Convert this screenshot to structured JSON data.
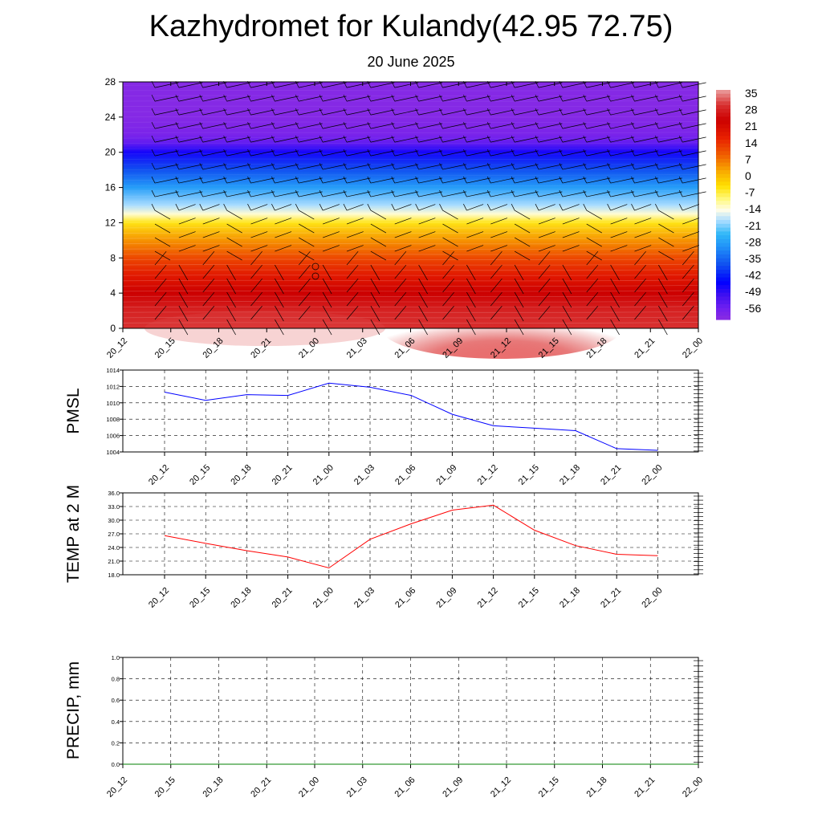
{
  "page": {
    "title": "Kazhydromet for Kulandy(42.95 72.75)",
    "subtitle": "20 June 2025"
  },
  "chart_data": [
    {
      "id": "temperature-profile",
      "type": "heatmap",
      "x_tick_labels": [
        "20_12",
        "20_15",
        "20_18",
        "20_21",
        "21_00",
        "21_03",
        "21_06",
        "21_09",
        "21_12",
        "21_15",
        "21_18",
        "21_21",
        "22_00"
      ],
      "y_ticks": [
        0,
        4,
        8,
        12,
        16,
        20,
        24,
        28
      ],
      "ylim": [
        0,
        28
      ],
      "colorbar_labels": [
        "35",
        "28",
        "21",
        "14",
        "7",
        "0",
        "-7",
        "-14",
        "-21",
        "-28",
        "-35",
        "-42",
        "-49",
        "-56"
      ],
      "colorbar_range": [
        -63,
        42
      ],
      "level_temperatures": [
        {
          "level": 0,
          "t": 35
        },
        {
          "level": 2,
          "t": 33
        },
        {
          "level": 4,
          "t": 28
        },
        {
          "level": 6,
          "t": 22
        },
        {
          "level": 8,
          "t": 15
        },
        {
          "level": 10,
          "t": 7
        },
        {
          "level": 12,
          "t": -3
        },
        {
          "level": 13,
          "t": -12
        },
        {
          "level": 14,
          "t": -18
        },
        {
          "level": 16,
          "t": -28
        },
        {
          "level": 18,
          "t": -38
        },
        {
          "level": 20,
          "t": -48
        },
        {
          "level": 21,
          "t": -56
        },
        {
          "level": 22,
          "t": -60
        },
        {
          "level": 24,
          "t": -62
        },
        {
          "level": 28,
          "t": -62
        }
      ],
      "colors": [
        "#e0e0e0",
        "#e05858",
        "#cc0000",
        "#e83010",
        "#f06000",
        "#f8a000",
        "#fff000",
        "#fffdf0",
        "#a0d8ff",
        "#30b0f8",
        "#1060f0",
        "#0000ff",
        "#5020f0",
        "#8020f0"
      ],
      "wind_barbs": "present"
    },
    {
      "id": "pmsl",
      "type": "line",
      "ylabel": "PMSL",
      "x_tick_labels": [
        "20_12",
        "20_15",
        "20_18",
        "20_21",
        "21_00",
        "21_03",
        "21_06",
        "21_09",
        "21_12",
        "21_15",
        "21_18",
        "21_21",
        "22_00"
      ],
      "y_tick_labels": [
        "1014",
        "1012",
        "1010",
        "1008",
        "1006",
        "1004"
      ],
      "ylim": [
        1004,
        1014
      ],
      "series": [
        {
          "values": [
            1011.3,
            1010.3,
            1011.0,
            1010.9,
            1012.4,
            1011.9,
            1010.9,
            1008.6,
            1007.2,
            1006.9,
            1006.6,
            1004.4,
            1004.2
          ]
        }
      ],
      "color": "#0000ff",
      "grid": true
    },
    {
      "id": "temp2m",
      "type": "line",
      "ylabel": "TEMP at 2 M",
      "x_tick_labels": [
        "20_12",
        "20_15",
        "20_18",
        "20_21",
        "21_00",
        "21_03",
        "21_06",
        "21_09",
        "21_12",
        "21_15",
        "21_18",
        "21_21",
        "22_00"
      ],
      "y_tick_labels": [
        "36.0",
        "33.0",
        "30.0",
        "27.0",
        "24.0",
        "21.0",
        "18.0"
      ],
      "ylim": [
        18,
        36
      ],
      "series": [
        {
          "values": [
            26.6,
            24.9,
            23.3,
            21.9,
            19.5,
            25.8,
            29.2,
            32.2,
            33.3,
            27.8,
            24.4,
            22.5,
            22.2
          ]
        }
      ],
      "color": "#ff0000",
      "grid": true
    },
    {
      "id": "precip",
      "type": "line",
      "ylabel": "PRECIP, mm",
      "x_tick_labels": [
        "20_12",
        "20_15",
        "20_18",
        "20_21",
        "21_00",
        "21_03",
        "21_06",
        "21_09",
        "21_12",
        "21_15",
        "21_18",
        "21_21",
        "22_00"
      ],
      "y_tick_labels": [
        "1.0",
        "0.8",
        "0.6",
        "0.4",
        "0.2",
        "0.0"
      ],
      "ylim": [
        0,
        1
      ],
      "series": [
        {
          "values": [
            0,
            0,
            0,
            0,
            0,
            0,
            0,
            0,
            0,
            0,
            0,
            0,
            0
          ]
        }
      ],
      "color": "#008000",
      "grid": true
    }
  ]
}
